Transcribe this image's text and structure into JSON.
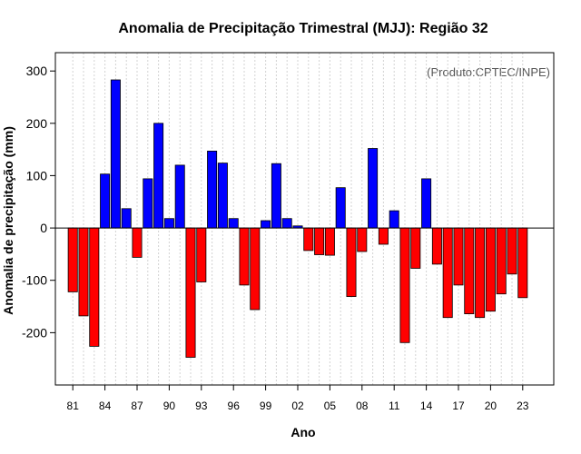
{
  "chart_data": {
    "type": "bar",
    "title": "Anomalia de Precipitação Trimestral (MJJ): Região 32",
    "xlabel": "Ano",
    "ylabel": "Anomalia de precipitação (mm)",
    "credit": "(Produto:CPTEC/INPE)",
    "ylim": [
      -300,
      335
    ],
    "yticks": [
      -200,
      -100,
      0,
      100,
      200,
      300
    ],
    "grid": true,
    "colors": {
      "positive": "#0000ff",
      "negative": "#ff0000",
      "grid": "#d3d3d3"
    },
    "categories": [
      "1981",
      "1982",
      "1983",
      "1984",
      "1985",
      "1986",
      "1987",
      "1988",
      "1989",
      "1990",
      "1991",
      "1992",
      "1993",
      "1994",
      "1995",
      "1996",
      "1997",
      "1998",
      "1999",
      "2000",
      "2001",
      "2002",
      "2003",
      "2004",
      "2005",
      "2006",
      "2007",
      "2008",
      "2009",
      "2010",
      "2011",
      "2012",
      "2013",
      "2014",
      "2015",
      "2016",
      "2017",
      "2018",
      "2019",
      "2020",
      "2021",
      "2022",
      "2023"
    ],
    "values": [
      -122,
      -168,
      -226,
      103,
      283,
      37,
      -56,
      94,
      200,
      18,
      120,
      -247,
      -103,
      147,
      124,
      18,
      -109,
      -156,
      14,
      123,
      18,
      4,
      -43,
      -51,
      -52,
      77,
      -131,
      -45,
      152,
      -31,
      33,
      -219,
      -77,
      94,
      -69,
      -171,
      -109,
      -164,
      -171,
      -159,
      -126,
      -88,
      -133
    ],
    "xtick_labels": [
      {
        "index": 0,
        "label": "81"
      },
      {
        "index": 3,
        "label": "84"
      },
      {
        "index": 6,
        "label": "87"
      },
      {
        "index": 9,
        "label": "90"
      },
      {
        "index": 12,
        "label": "93"
      },
      {
        "index": 15,
        "label": "96"
      },
      {
        "index": 18,
        "label": "99"
      },
      {
        "index": 21,
        "label": "02"
      },
      {
        "index": 24,
        "label": "05"
      },
      {
        "index": 27,
        "label": "08"
      },
      {
        "index": 30,
        "label": "11"
      },
      {
        "index": 33,
        "label": "14"
      },
      {
        "index": 36,
        "label": "17"
      },
      {
        "index": 39,
        "label": "20"
      },
      {
        "index": 42,
        "label": "23"
      }
    ]
  }
}
